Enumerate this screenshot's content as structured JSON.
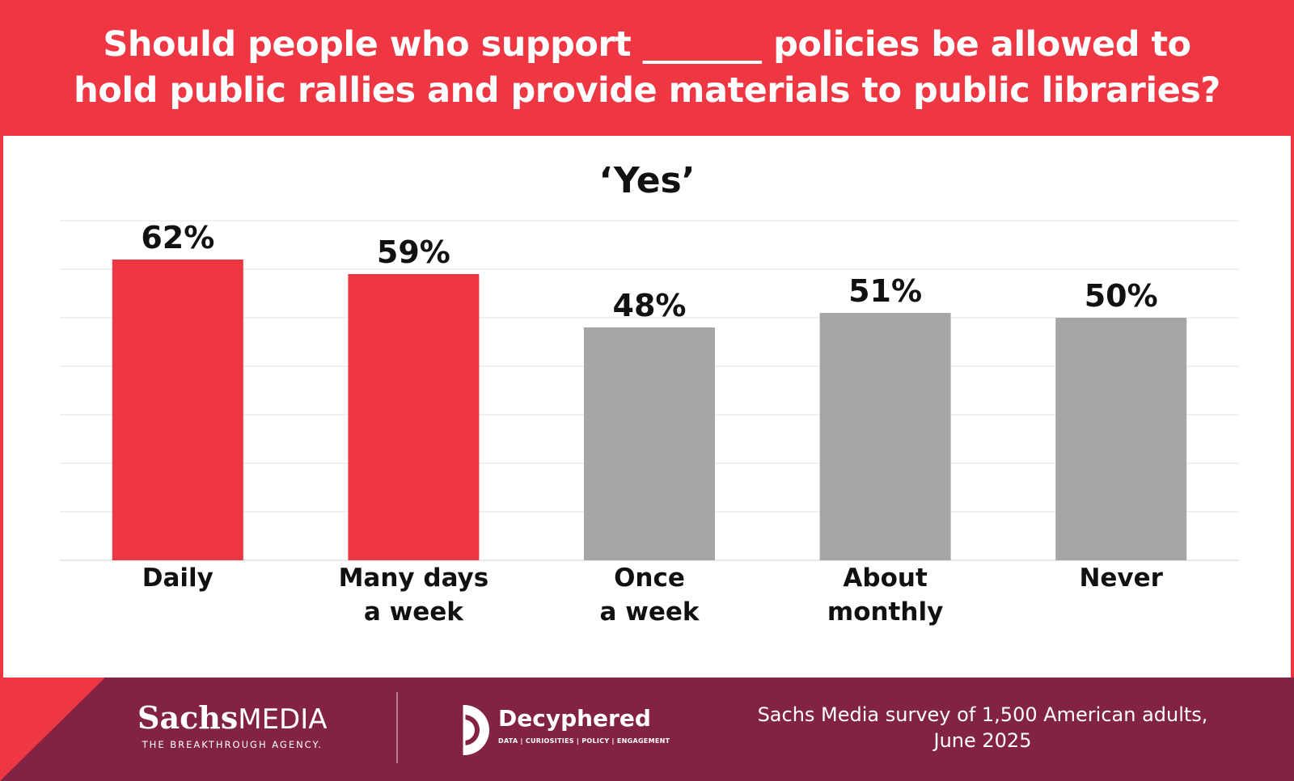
{
  "header": {
    "title_line1": "Should people who support _______ policies be allowed to",
    "title_line2": "hold public rallies and provide materials to public libraries?"
  },
  "chart_data": {
    "type": "bar",
    "title": "‘Yes’",
    "categories": [
      [
        "Daily"
      ],
      [
        "Many days",
        "a week"
      ],
      [
        "Once",
        "a week"
      ],
      [
        "About",
        "monthly"
      ],
      [
        "Never"
      ]
    ],
    "values": [
      62,
      59,
      48,
      51,
      50
    ],
    "data_labels": [
      "62%",
      "59%",
      "48%",
      "51%",
      "50%"
    ],
    "ylim": [
      0,
      70
    ],
    "grid": true,
    "colors": [
      "#ef3744",
      "#ef3744",
      "#a6a6a6",
      "#a6a6a6",
      "#a6a6a6"
    ]
  },
  "footer": {
    "sachs_name_bold": "Sachs",
    "sachs_name_rest": "MEDIA",
    "sachs_tagline": "THE BREAKTHROUGH AGENCY.",
    "decyphered_name": "Decyphered",
    "decyphered_tagline": "DATA | CURIOSITIES | POLICY | ENGAGEMENT",
    "source_line1": "Sachs Media survey of 1,500 American adults,",
    "source_line2": "June 2025"
  },
  "colors": {
    "brand_red": "#ef3744",
    "footer_maroon": "#822244",
    "bar_gray": "#a6a6a6"
  }
}
